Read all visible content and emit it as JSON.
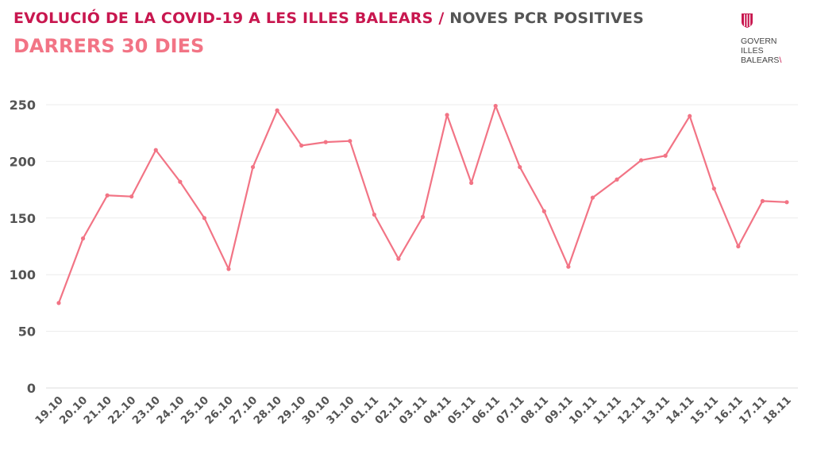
{
  "header": {
    "title_main": "EVOLUCIÓ DE LA COVID-19 A LES ILLES BALEARS",
    "title_sep": " / ",
    "title_sub": "NOVES PCR POSITIVES",
    "subtitle": "DARRERS 30 DIES"
  },
  "logo": {
    "lines": [
      "GOVERN",
      "ILLES",
      "BALEARS"
    ],
    "color": "#c8174f"
  },
  "chart_data": {
    "type": "line",
    "title": "EVOLUCIÓ DE LA COVID-19 A LES ILLES BALEARS / NOVES PCR POSITIVES",
    "subtitle": "DARRERS 30 DIES",
    "xlabel": "",
    "ylabel": "",
    "ylim": [
      0,
      250
    ],
    "yticks": [
      0,
      50,
      100,
      150,
      200,
      250
    ],
    "grid": true,
    "color": "#f27485",
    "categories": [
      "19.10",
      "20.10",
      "21.10",
      "22.10",
      "23.10",
      "24.10",
      "25.10",
      "26.10",
      "27.10",
      "28.10",
      "29.10",
      "30.10",
      "31.10",
      "01.11",
      "02.11",
      "03.11",
      "04.11",
      "05.11",
      "06.11",
      "07.11",
      "08.11",
      "09.11",
      "10.11",
      "11.11",
      "12.11",
      "13.11",
      "14.11",
      "15.11",
      "16.11",
      "17.11",
      "18.11"
    ],
    "series": [
      {
        "name": "Noves PCR positives",
        "values": [
          75,
          132,
          170,
          169,
          210,
          182,
          150,
          105,
          195,
          245,
          214,
          217,
          218,
          153,
          114,
          151,
          241,
          181,
          249,
          195,
          156,
          107,
          168,
          184,
          201,
          205,
          240,
          176,
          125,
          165,
          164
        ]
      }
    ]
  }
}
